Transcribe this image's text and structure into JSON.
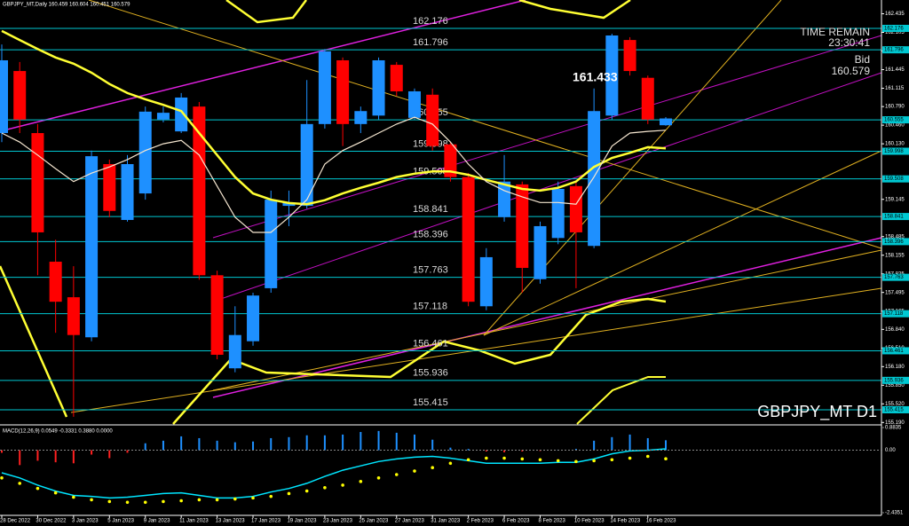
{
  "chart_data": [
    {
      "type": "candlestick",
      "title": "GBPJPY_MT,Daily  160.459 160.604 160.451 160.579",
      "watermark": "GBPJPY_MT D1",
      "time_remain_label": "TIME REMAIN",
      "time_remain": "23:30:41",
      "bid_label": "Bid",
      "bid": 160.579,
      "price_label": 161.433,
      "categories": [
        "28 Dec 2022",
        null,
        "30 Dec 2022",
        null,
        "3 Jan 2023",
        null,
        "5 Jan 2023",
        null,
        "9 Jan 2023",
        null,
        "11 Jan 2023",
        null,
        "13 Jan 2023",
        null,
        "17 Jan 2023",
        null,
        "19 Jan 2023",
        null,
        "23 Jan 2023",
        null,
        "25 Jan 2023",
        null,
        "27 Jan 2023",
        null,
        "31 Jan 2023",
        null,
        "2 Feb 2023",
        null,
        "6 Feb 2023",
        null,
        "8 Feb 2023",
        null,
        "10 Feb 2023",
        null,
        "14 Feb 2023",
        null,
        "16 Feb 2023",
        null
      ],
      "open": [
        160.32,
        161.42,
        160.32,
        158.04,
        157.41,
        156.7,
        159.77,
        158.78,
        159.25,
        160.56,
        160.35,
        160.79,
        157.8,
        156.15,
        156.63,
        157.57,
        159.03,
        159.03,
        160.48,
        161.61,
        160.48,
        160.63,
        161.53,
        160.59,
        161.0,
        160.12,
        159.54,
        157.25,
        158.83,
        159.41,
        157.73,
        158.46,
        159.38,
        158.32,
        160.63,
        161.97,
        161.3,
        160.459
      ],
      "high": [
        161.89,
        161.58,
        160.48,
        158.43,
        157.96,
        160.01,
        159.85,
        159.93,
        160.79,
        160.79,
        161.03,
        160.87,
        157.88,
        157.25,
        157.49,
        159.3,
        159.3,
        161.26,
        161.81,
        161.66,
        160.79,
        161.66,
        161.58,
        161.11,
        161.11,
        160.16,
        159.61,
        158.28,
        159.93,
        159.46,
        158.75,
        159.46,
        159.46,
        161.11,
        162.08,
        162.02,
        161.34,
        160.604
      ],
      "low": [
        160.16,
        160.32,
        157.8,
        156.78,
        155.29,
        156.63,
        158.83,
        158.75,
        159.14,
        160.51,
        160.32,
        157.72,
        156.31,
        156.08,
        156.55,
        157.49,
        158.67,
        158.98,
        160.4,
        160.09,
        160.32,
        160.56,
        160.98,
        160.56,
        160.01,
        159.46,
        157.25,
        157.18,
        158.75,
        157.49,
        157.65,
        158.35,
        157.57,
        158.28,
        160.56,
        161.34,
        160.48,
        160.451
      ],
      "close": [
        161.61,
        160.56,
        158.56,
        157.33,
        156.74,
        159.91,
        158.94,
        159.77,
        160.7,
        160.68,
        160.95,
        157.8,
        156.39,
        156.74,
        157.44,
        159.14,
        159.09,
        160.48,
        161.77,
        160.48,
        160.71,
        161.61,
        161.06,
        161.06,
        160.09,
        159.54,
        157.33,
        158.12,
        159.46,
        157.93,
        158.67,
        159.33,
        158.56,
        160.71,
        162.05,
        161.42,
        160.56,
        160.579
      ],
      "up_color": "#1e90ff",
      "down_color": "#ff0000",
      "ma_lines": [
        {
          "color": "#ffff33",
          "width": 2.5,
          "values": [
            162.13,
            161.97,
            161.81,
            161.66,
            161.55,
            161.39,
            161.19,
            161.03,
            160.92,
            160.82,
            160.71,
            160.32,
            159.93,
            159.54,
            159.25,
            159.14,
            159.08,
            159.06,
            159.13,
            159.25,
            159.35,
            159.44,
            159.54,
            159.6,
            159.64,
            159.64,
            159.58,
            159.49,
            159.41,
            159.33,
            159.3,
            159.35,
            159.46,
            159.72,
            159.88,
            159.97,
            160.07,
            160.05
          ]
        },
        {
          "color": "#f5e6d0",
          "width": 1.2,
          "values": [
            160.32,
            160.16,
            159.93,
            159.69,
            159.46,
            159.61,
            159.72,
            159.85,
            160.01,
            160.13,
            160.19,
            159.93,
            159.38,
            158.83,
            158.56,
            158.56,
            158.83,
            159.14,
            159.77,
            160.01,
            160.16,
            160.32,
            160.48,
            160.6,
            160.48,
            160.16,
            159.77,
            159.46,
            159.3,
            159.19,
            159.09,
            159.09,
            159.06,
            159.54,
            160.09,
            160.32,
            160.35,
            160.37
          ]
        }
      ],
      "levels": [
        162.176,
        161.796,
        160.555,
        159.998,
        159.508,
        158.841,
        158.396,
        157.763,
        157.118,
        156.461,
        155.936,
        155.415
      ],
      "levels_color": "#00c8d2",
      "ylim": [
        155.163,
        162.679
      ],
      "yticks": [
        162.435,
        162.105,
        161.775,
        161.445,
        161.115,
        {
          "value": 160.79,
          "label": "160.790"
        },
        {
          "value": 160.46,
          "label": "160.460"
        },
        {
          "value": 160.13,
          "label": "160.130"
        },
        159.145,
        158.485,
        158.155,
        157.825,
        157.495,
        157.165,
        {
          "value": 156.84,
          "label": "156.840"
        },
        {
          "value": 156.51,
          "label": "156.510"
        },
        {
          "value": 156.18,
          "label": "156.180"
        },
        {
          "value": 155.85,
          "label": "155.850"
        },
        {
          "value": 155.52,
          "label": "155.520"
        },
        {
          "value": 155.19,
          "label": "155.190"
        }
      ]
    },
    {
      "type": "macd",
      "title": "MACD(12,26,9) 0.0549 -0.3331 0.3880 0.0000",
      "histogram": [
        -0.1,
        -0.58,
        -0.41,
        -0.47,
        -0.51,
        -0.17,
        -0.31,
        -0.1,
        0.27,
        0.37,
        0.54,
        0.47,
        0.37,
        0.31,
        0.34,
        0.47,
        0.51,
        0.58,
        0.58,
        0.61,
        0.71,
        0.75,
        0.68,
        0.61,
        0.41,
        0.1,
        0.05,
        -0.05,
        -0.08,
        -0.05,
        -0.03,
        0.02,
        0.05,
        0.37,
        0.51,
        0.61,
        0.47,
        0.388
      ],
      "line": [
        -0.88,
        -1.08,
        -1.36,
        -1.59,
        -1.76,
        -1.8,
        -1.86,
        -1.83,
        -1.76,
        -1.69,
        -1.66,
        -1.76,
        -1.86,
        -1.86,
        -1.8,
        -1.63,
        -1.49,
        -1.29,
        -1.02,
        -0.78,
        -0.61,
        -0.44,
        -0.34,
        -0.27,
        -0.24,
        -0.31,
        -0.41,
        -0.51,
        -0.51,
        -0.51,
        -0.51,
        -0.47,
        -0.47,
        -0.34,
        -0.14,
        -0.03,
        0.0,
        0.0549
      ],
      "signal": [
        -1.08,
        -1.29,
        -1.49,
        -1.66,
        -1.83,
        -1.93,
        -2.0,
        -2.03,
        -2.03,
        -2.0,
        -1.97,
        -1.93,
        -1.93,
        -1.9,
        -1.86,
        -1.8,
        -1.69,
        -1.59,
        -1.46,
        -1.36,
        -1.22,
        -1.08,
        -0.95,
        -0.81,
        -0.68,
        -0.51,
        -0.37,
        -0.31,
        -0.31,
        -0.34,
        -0.37,
        -0.41,
        -0.44,
        -0.41,
        -0.37,
        -0.31,
        -0.24,
        -0.3331
      ],
      "up_color": "#1e90ff",
      "down_color": "#ff2020",
      "line_color": "#00e5ff",
      "signal_color": "#ffff00",
      "ylim": [
        -2.4351,
        0.8835
      ],
      "yticks": [
        0.8835,
        {
          "value": 0,
          "label": "0.00"
        },
        -2.4351
      ]
    }
  ]
}
